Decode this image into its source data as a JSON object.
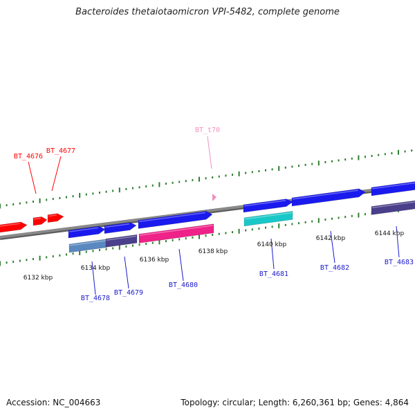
{
  "title": "Bacteroides thetaiotaomicron VPI-5482, complete genome",
  "footer": {
    "accession": "Accession: NC_004663",
    "summary": "Topology: circular; Length: 6,260,361 bp; Genes: 4,864"
  },
  "colors": {
    "backbone": "#8a8a8a",
    "tick": "#2e7d2e",
    "gene_red": "#ff0000",
    "gene_blue": "#1a1aee",
    "gene_cyan": "#18c8c8",
    "gene_pink": "#ee2288",
    "gene_steel": "#5a88c0",
    "gene_slate": "#4a3f8a",
    "label_red": "#ff0000",
    "label_blue": "#1a1acc",
    "label_pink": "#f090c0"
  },
  "position_ticks": [
    "6132 kbp",
    "6134 kbp",
    "6136 kbp",
    "6138 kbp",
    "6140 kbp",
    "6142 kbp",
    "6144 kbp"
  ],
  "gene_labels": [
    {
      "name": "BT_4676",
      "color": "red"
    },
    {
      "name": "BT_4677",
      "color": "red"
    },
    {
      "name": "BT_t70",
      "color": "pink"
    },
    {
      "name": "BT_4678",
      "color": "blue"
    },
    {
      "name": "BT_4679",
      "color": "blue"
    },
    {
      "name": "BT_4680",
      "color": "blue"
    },
    {
      "name": "BT_4681",
      "color": "blue"
    },
    {
      "name": "BT_4682",
      "color": "blue"
    },
    {
      "name": "BT_4683",
      "color": "blue"
    }
  ]
}
